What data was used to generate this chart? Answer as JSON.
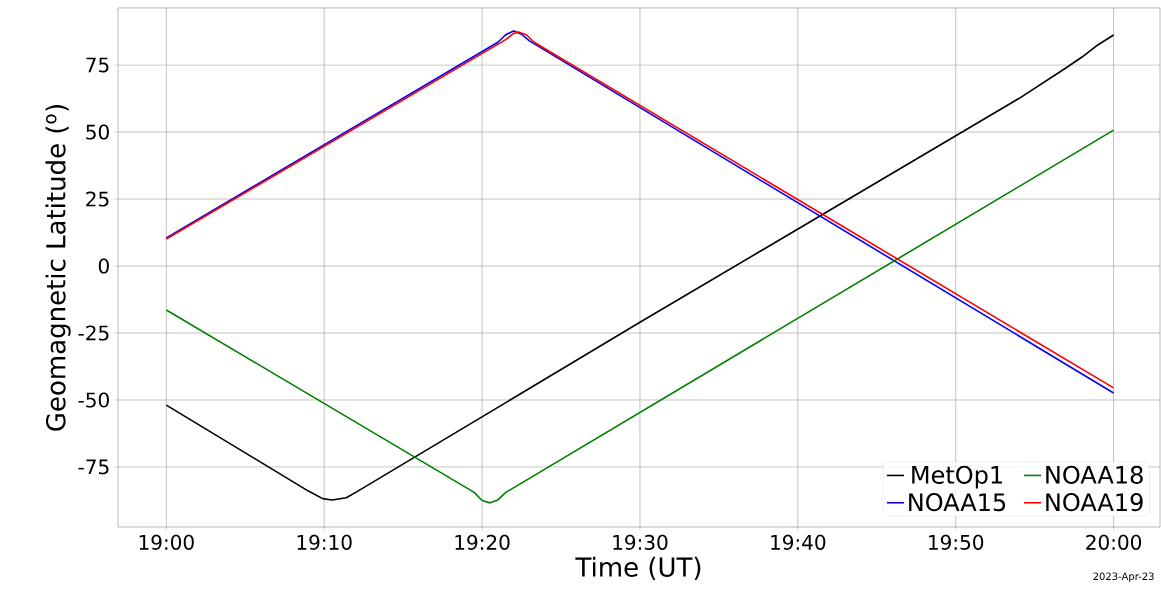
{
  "chart_data": {
    "type": "line",
    "xlabel": "Time (UT)",
    "ylabel": "Geomagnetic Latitude ($^{o}$)",
    "annotations": [
      "2023-Apr-23"
    ],
    "series": [
      {
        "name": "MetOp1",
        "color": "#000000",
        "x": [
          19.0,
          19.15,
          19.165,
          19.175,
          19.19,
          19.2,
          19.5,
          19.9,
          19.95,
          19.9667,
          19.9833,
          20.0
        ],
        "values": [
          -51.9,
          -84.0,
          -86.8,
          -87.3,
          -86.5,
          -84.5,
          -21.0,
          62.5,
          74.0,
          78.0,
          82.5,
          86.2
        ]
      },
      {
        "name": "NOAA15",
        "color": "#0000ff",
        "x": [
          19.0,
          19.35,
          19.3583,
          19.3667,
          19.375,
          19.3833,
          20.0
        ],
        "values": [
          10.5,
          83.5,
          86.3,
          87.7,
          86.5,
          84.0,
          -47.4
        ]
      },
      {
        "name": "NOAA18",
        "color": "#008000",
        "x": [
          19.0,
          19.325,
          19.3333,
          19.3417,
          19.35,
          19.3583,
          20.0
        ],
        "values": [
          -16.4,
          -84.5,
          -87.5,
          -88.4,
          -87.3,
          -84.5,
          50.7
        ]
      },
      {
        "name": "NOAA19",
        "color": "#ff0000",
        "x": [
          19.0,
          19.3583,
          19.3667,
          19.3717,
          19.38,
          19.3883,
          20.0
        ],
        "values": [
          10.1,
          84.5,
          86.8,
          87.3,
          86.3,
          83.5,
          -45.5
        ]
      }
    ],
    "xlim": [
      18.949,
      20.049
    ],
    "ylim": [
      -97.4,
      96.3
    ],
    "xticks": [
      {
        "value": 19.0,
        "label": "19:00"
      },
      {
        "value": 19.16667,
        "label": "19:10"
      },
      {
        "value": 19.33333,
        "label": "19:20"
      },
      {
        "value": 19.5,
        "label": "19:30"
      },
      {
        "value": 19.66667,
        "label": "19:40"
      },
      {
        "value": 19.83333,
        "label": "19:50"
      },
      {
        "value": 20.0,
        "label": "20:00"
      }
    ],
    "yticks": [
      -75,
      -50,
      -25,
      0,
      25,
      50,
      75
    ],
    "grid": true,
    "legend": "bottom right",
    "marker": "none",
    "line_style": "solid"
  }
}
